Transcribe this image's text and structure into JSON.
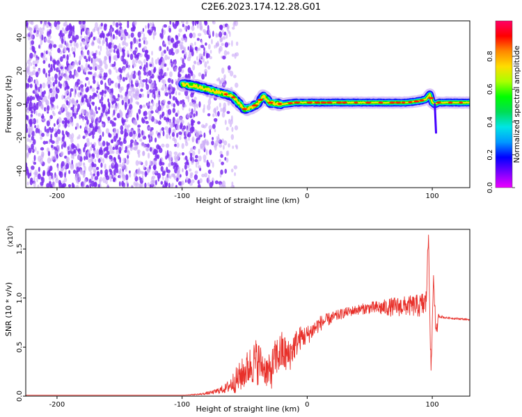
{
  "figure_title": "C2E6.2023.174.12.28.G01",
  "colors": {
    "snr_line": "#e8302a",
    "spectrogram_noise": "#7a2cf0",
    "colorbar_stops": [
      "#ee00ff",
      "#7700ff",
      "#0000ff",
      "#0099ff",
      "#00e5e5",
      "#00dd55",
      "#00ff00",
      "#aaff00",
      "#ffdd00",
      "#ff8800",
      "#ff0000",
      "#ff0066"
    ]
  },
  "chart_data": [
    {
      "type": "heatmap",
      "title": "",
      "xlabel": "Height of straight line (km)",
      "ylabel": "Frequency (Hz)",
      "xlim": [
        -225,
        130
      ],
      "ylim": [
        -50,
        50
      ],
      "x_ticks": [
        -200,
        -100,
        0,
        100
      ],
      "y_ticks": [
        -40,
        -20,
        0,
        20,
        40
      ],
      "colorbar": {
        "label": "Normalized spectral amplitude",
        "range": [
          0,
          1
        ],
        "ticks": [
          "0.0",
          "0.2",
          "0.4",
          "0.6",
          "0.8"
        ]
      },
      "noise_region_x": [
        -225,
        -68
      ],
      "signal_trace": {
        "x": [
          -100,
          -90,
          -80,
          -70,
          -60,
          -55,
          -50,
          -45,
          -40,
          -35,
          -30,
          -20,
          -10,
          0,
          20,
          40,
          60,
          80,
          90,
          95,
          98,
          100,
          102,
          105,
          110,
          130
        ],
        "frequency_hz": [
          12,
          11,
          9,
          7,
          5,
          1,
          -3,
          -2,
          0,
          5,
          1,
          0,
          1,
          1,
          1,
          1,
          1,
          1,
          2,
          3,
          6,
          1,
          0,
          1,
          1,
          1
        ]
      }
    },
    {
      "type": "line",
      "title": "",
      "xlabel": "Height of straight line (km)",
      "ylabel": "SNR (10 * v/v)",
      "y_multiplier_label": "(x10",
      "y_multiplier_exponent": "4",
      "y_multiplier_close": ")",
      "xlim": [
        -225,
        130
      ],
      "ylim": [
        0,
        1.7
      ],
      "x_ticks": [
        -200,
        -100,
        0,
        100
      ],
      "y_ticks": [
        "0.0",
        "0.5",
        "1.0",
        "1.5"
      ],
      "series": [
        {
          "x": [
            -225,
            -150,
            -100,
            -85,
            -75,
            -65,
            -55,
            -45,
            -40,
            -35,
            -30,
            -25,
            -20,
            -15,
            -10,
            -5,
            0,
            10,
            20,
            30,
            40,
            50,
            60,
            70,
            80,
            90,
            95,
            97,
            99,
            101,
            103,
            105,
            110,
            120,
            130
          ],
          "values": [
            0.01,
            0.01,
            0.01,
            0.02,
            0.04,
            0.08,
            0.18,
            0.32,
            0.36,
            0.3,
            0.22,
            0.4,
            0.45,
            0.4,
            0.52,
            0.6,
            0.62,
            0.74,
            0.8,
            0.85,
            0.88,
            0.9,
            0.9,
            0.91,
            0.92,
            0.92,
            0.95,
            1.65,
            0.2,
            1.25,
            0.6,
            0.82,
            0.8,
            0.79,
            0.78
          ],
          "jitter_amplitude": [
            0.0,
            0.0,
            0.0,
            0.01,
            0.02,
            0.05,
            0.15,
            0.2,
            0.25,
            0.15,
            0.2,
            0.2,
            0.22,
            0.18,
            0.15,
            0.12,
            0.1,
            0.08,
            0.06,
            0.05,
            0.05,
            0.06,
            0.08,
            0.1,
            0.1,
            0.12,
            0.15,
            0.1,
            0.1,
            0.1,
            0.1,
            0.02,
            0.01,
            0.01,
            0.01
          ]
        }
      ]
    }
  ]
}
